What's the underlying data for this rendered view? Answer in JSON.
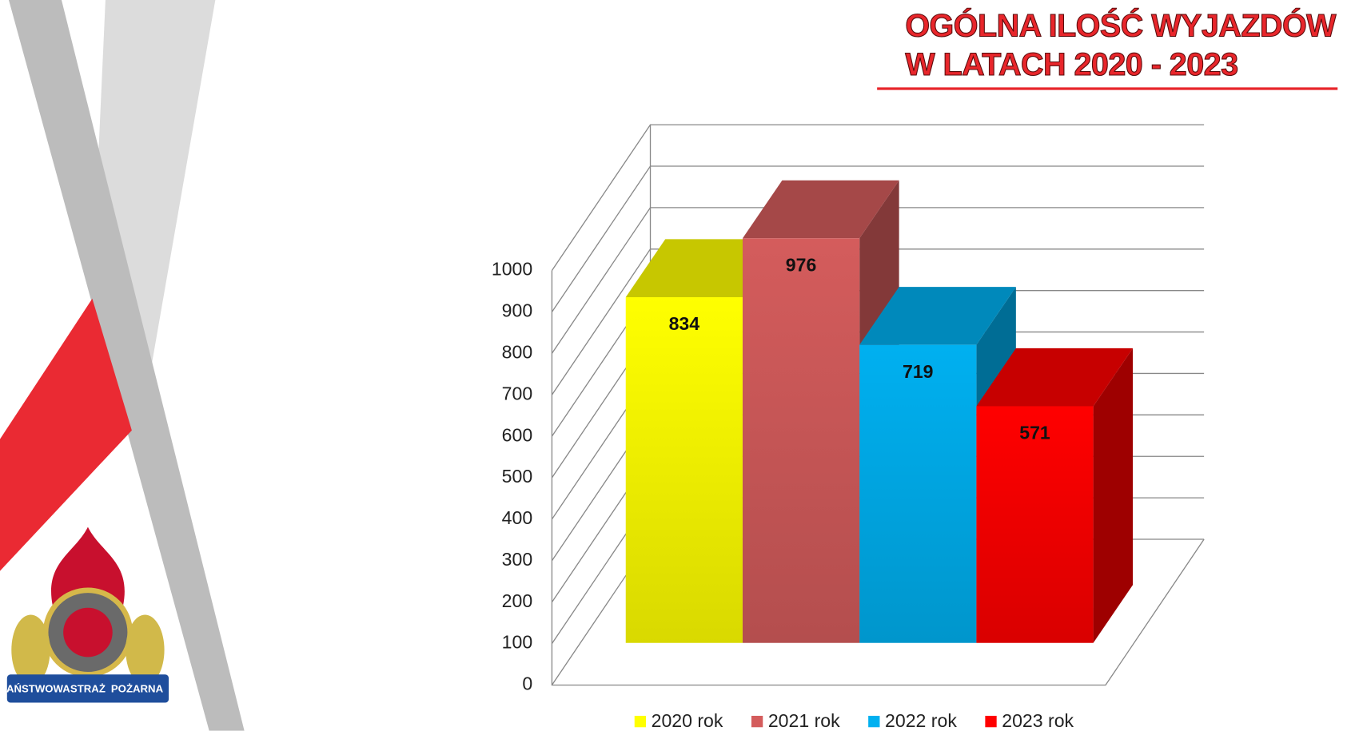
{
  "chart_data": {
    "type": "bar3d",
    "title": [
      "OGÓLNA ILOŚĆ WYJAZDÓW",
      "W LATACH 2020 - 2023"
    ],
    "categories": [
      "2020 rok",
      "2021 rok",
      "2022 rok",
      "2023 rok"
    ],
    "values": [
      834,
      976,
      719,
      571
    ],
    "colors": [
      "#ffff00",
      "#d45c5c",
      "#00b0f0",
      "#ff0000"
    ],
    "ylim": [
      0,
      1000
    ],
    "yticks": [
      0,
      100,
      200,
      300,
      400,
      500,
      600,
      700,
      800,
      900,
      1000
    ],
    "grid": true,
    "legend": "bottom"
  },
  "logo": {
    "text": [
      "PAŃSTWOWA",
      "STRAŻ",
      "POŻARNA"
    ]
  }
}
